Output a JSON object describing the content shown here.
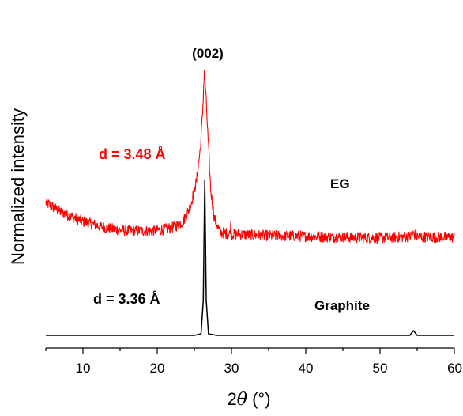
{
  "chart_data": {
    "type": "line",
    "xlabel_prefix": "2",
    "xlabel_symbol": "θ",
    "xlabel_unit": " (°)",
    "ylabel": "Normalized intensity",
    "xlim": [
      5,
      60
    ],
    "x_ticks": [
      10,
      20,
      30,
      40,
      50,
      60
    ],
    "y_ticks_shown": false,
    "grid": false,
    "legend": "none",
    "annotations": {
      "peak_label": "(002)",
      "eg_spacing": "d = 3.48 Å",
      "eg_label": "EG",
      "graphite_spacing": "d = 3.36 Å",
      "graphite_label": "Graphite"
    },
    "series": [
      {
        "name": "EG",
        "color": "#ff0000",
        "noisy": true,
        "points": [
          [
            5,
            0.46
          ],
          [
            7,
            0.43
          ],
          [
            10,
            0.4
          ],
          [
            13,
            0.38
          ],
          [
            16,
            0.37
          ],
          [
            19,
            0.37
          ],
          [
            21,
            0.375
          ],
          [
            22.5,
            0.385
          ],
          [
            23.5,
            0.4
          ],
          [
            24.5,
            0.45
          ],
          [
            25.3,
            0.53
          ],
          [
            25.8,
            0.63
          ],
          [
            26.1,
            0.74
          ],
          [
            26.35,
            0.88
          ],
          [
            26.55,
            0.8
          ],
          [
            26.8,
            0.68
          ],
          [
            27.2,
            0.5
          ],
          [
            27.7,
            0.41
          ],
          [
            28.5,
            0.365
          ],
          [
            30,
            0.36
          ],
          [
            35,
            0.355
          ],
          [
            40,
            0.353
          ],
          [
            45,
            0.35
          ],
          [
            50,
            0.348
          ],
          [
            54,
            0.352
          ],
          [
            54.5,
            0.362
          ],
          [
            55,
            0.352
          ],
          [
            58,
            0.35
          ],
          [
            60,
            0.35
          ]
        ]
      },
      {
        "name": "Graphite",
        "color": "#000000",
        "noisy": false,
        "points": [
          [
            5,
            0.04
          ],
          [
            25,
            0.04
          ],
          [
            25.9,
            0.045
          ],
          [
            26.2,
            0.15
          ],
          [
            26.4,
            0.53
          ],
          [
            26.6,
            0.15
          ],
          [
            26.9,
            0.045
          ],
          [
            28,
            0.04
          ],
          [
            54,
            0.04
          ],
          [
            54.5,
            0.055
          ],
          [
            55,
            0.04
          ],
          [
            60,
            0.04
          ]
        ]
      }
    ]
  }
}
